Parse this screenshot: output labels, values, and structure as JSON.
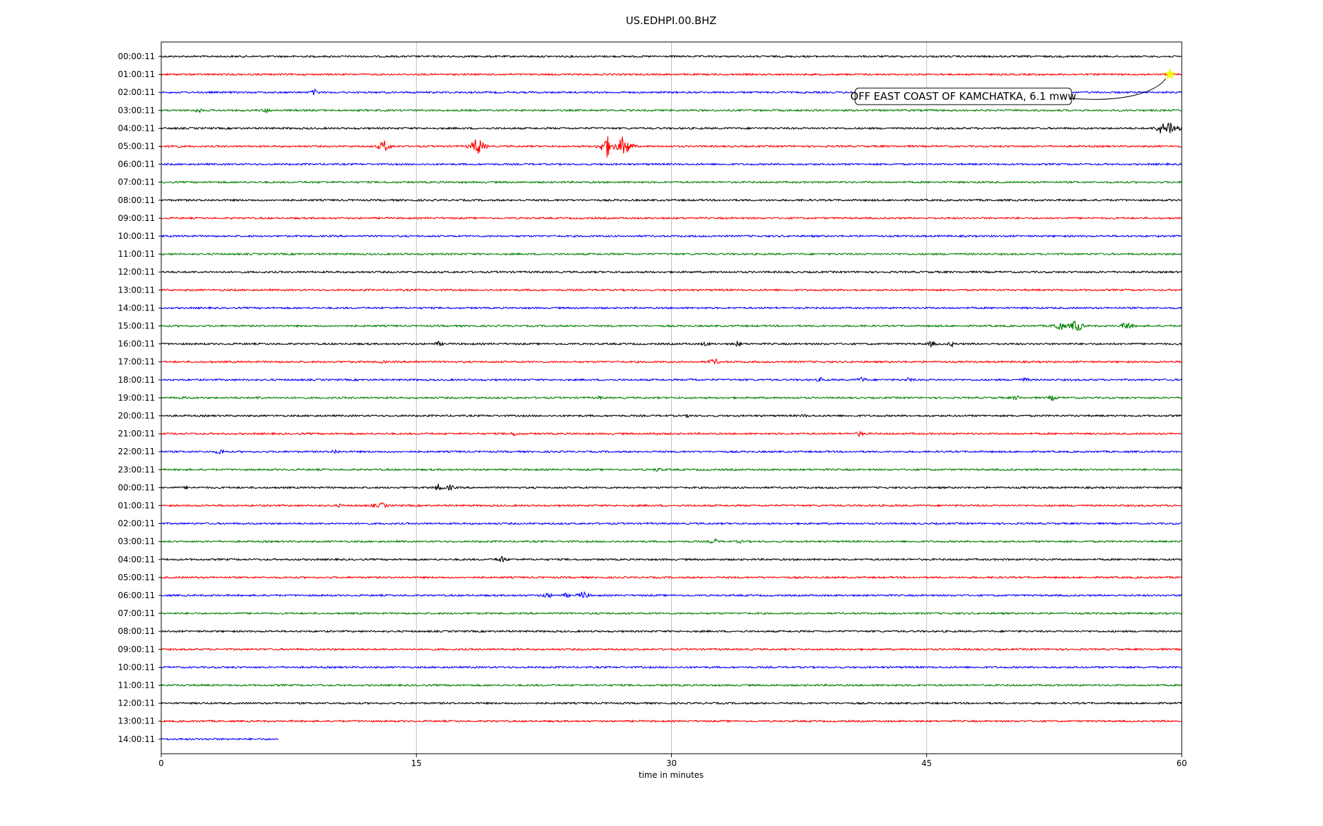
{
  "chart_data": {
    "type": "line",
    "title": "US.EDHPI.00.BHZ",
    "xlabel": "time in minutes",
    "ylabel": "",
    "xlim": [
      0,
      60
    ],
    "x_ticks": [
      0,
      15,
      30,
      45,
      60
    ],
    "grid": "vertical",
    "colors": [
      "#000000",
      "#ff0000",
      "#0000ff",
      "#008000"
    ],
    "rows": [
      {
        "label": "00:00:11"
      },
      {
        "label": "01:00:11"
      },
      {
        "label": "02:00:11"
      },
      {
        "label": "03:00:11"
      },
      {
        "label": "04:00:11"
      },
      {
        "label": "05:00:11"
      },
      {
        "label": "06:00:11"
      },
      {
        "label": "07:00:11"
      },
      {
        "label": "08:00:11"
      },
      {
        "label": "09:00:11"
      },
      {
        "label": "10:00:11"
      },
      {
        "label": "11:00:11"
      },
      {
        "label": "12:00:11"
      },
      {
        "label": "13:00:11"
      },
      {
        "label": "14:00:11"
      },
      {
        "label": "15:00:11"
      },
      {
        "label": "16:00:11"
      },
      {
        "label": "17:00:11"
      },
      {
        "label": "18:00:11"
      },
      {
        "label": "19:00:11"
      },
      {
        "label": "20:00:11"
      },
      {
        "label": "21:00:11"
      },
      {
        "label": "22:00:11"
      },
      {
        "label": "23:00:11"
      },
      {
        "label": "00:00:11"
      },
      {
        "label": "01:00:11"
      },
      {
        "label": "02:00:11"
      },
      {
        "label": "03:00:11"
      },
      {
        "label": "04:00:11"
      },
      {
        "label": "05:00:11"
      },
      {
        "label": "06:00:11"
      },
      {
        "label": "07:00:11"
      },
      {
        "label": "08:00:11"
      },
      {
        "label": "09:00:11"
      },
      {
        "label": "10:00:11"
      },
      {
        "label": "11:00:11"
      },
      {
        "label": "12:00:11"
      },
      {
        "label": "13:00:11"
      },
      {
        "label": "14:00:11",
        "end_minute": 6.9
      }
    ],
    "events": [
      {
        "row": 2,
        "minute": 9.0,
        "amp": 5
      },
      {
        "row": 3,
        "minute": 2.2,
        "amp": 4
      },
      {
        "row": 3,
        "minute": 6.2,
        "amp": 4
      },
      {
        "row": 4,
        "minute": 58.8,
        "amp": 10
      },
      {
        "row": 4,
        "minute": 59.3,
        "amp": 14
      },
      {
        "row": 4,
        "minute": 59.7,
        "amp": 8
      },
      {
        "row": 5,
        "minute": 0.8,
        "amp": 5
      },
      {
        "row": 5,
        "minute": 13.1,
        "amp": 10
      },
      {
        "row": 5,
        "minute": 18.6,
        "amp": 16
      },
      {
        "row": 5,
        "minute": 26.2,
        "amp": 18
      },
      {
        "row": 5,
        "minute": 27.2,
        "amp": 20
      },
      {
        "row": 15,
        "minute": 52.8,
        "amp": 9
      },
      {
        "row": 15,
        "minute": 53.8,
        "amp": 12
      },
      {
        "row": 15,
        "minute": 56.8,
        "amp": 8
      },
      {
        "row": 16,
        "minute": 16.3,
        "amp": 4
      },
      {
        "row": 16,
        "minute": 32.0,
        "amp": 4
      },
      {
        "row": 16,
        "minute": 33.9,
        "amp": 5
      },
      {
        "row": 16,
        "minute": 45.3,
        "amp": 5
      },
      {
        "row": 16,
        "minute": 46.5,
        "amp": 4
      },
      {
        "row": 17,
        "minute": 13.0,
        "amp": 3
      },
      {
        "row": 17,
        "minute": 15.0,
        "amp": 3
      },
      {
        "row": 17,
        "minute": 32.5,
        "amp": 6
      },
      {
        "row": 18,
        "minute": 31.3,
        "amp": 3
      },
      {
        "row": 18,
        "minute": 38.8,
        "amp": 4
      },
      {
        "row": 18,
        "minute": 41.2,
        "amp": 5
      },
      {
        "row": 18,
        "minute": 44.0,
        "amp": 4
      },
      {
        "row": 18,
        "minute": 50.8,
        "amp": 4
      },
      {
        "row": 19,
        "minute": 1.3,
        "amp": 3
      },
      {
        "row": 19,
        "minute": 5.8,
        "amp": 3
      },
      {
        "row": 19,
        "minute": 25.8,
        "amp": 3
      },
      {
        "row": 19,
        "minute": 50.3,
        "amp": 4
      },
      {
        "row": 19,
        "minute": 52.4,
        "amp": 5
      },
      {
        "row": 20,
        "minute": 31.0,
        "amp": 3
      },
      {
        "row": 20,
        "minute": 37.8,
        "amp": 3
      },
      {
        "row": 21,
        "minute": 20.8,
        "amp": 4
      },
      {
        "row": 21,
        "minute": 29.0,
        "amp": 3
      },
      {
        "row": 21,
        "minute": 41.1,
        "amp": 5
      },
      {
        "row": 22,
        "minute": 3.5,
        "amp": 5
      },
      {
        "row": 22,
        "minute": 10.2,
        "amp": 4
      },
      {
        "row": 23,
        "minute": 29.2,
        "amp": 4
      },
      {
        "row": 24,
        "minute": 1.5,
        "amp": 3
      },
      {
        "row": 24,
        "minute": 16.3,
        "amp": 6
      },
      {
        "row": 24,
        "minute": 17.0,
        "amp": 5
      },
      {
        "row": 25,
        "minute": 10.5,
        "amp": 3
      },
      {
        "row": 25,
        "minute": 12.5,
        "amp": 3
      },
      {
        "row": 25,
        "minute": 13.0,
        "amp": 5
      },
      {
        "row": 27,
        "minute": 32.5,
        "amp": 5
      },
      {
        "row": 27,
        "minute": 34.0,
        "amp": 3
      },
      {
        "row": 28,
        "minute": 20.0,
        "amp": 6
      },
      {
        "row": 30,
        "minute": 22.7,
        "amp": 5
      },
      {
        "row": 30,
        "minute": 23.8,
        "amp": 4
      },
      {
        "row": 30,
        "minute": 24.8,
        "amp": 7
      }
    ],
    "annotation": {
      "text": "OFF EAST COAST OF KAMCHATKA, 6.1 mww",
      "row": 1,
      "minute": 59.3,
      "marker": "star",
      "marker_color": "#ffff00"
    }
  }
}
